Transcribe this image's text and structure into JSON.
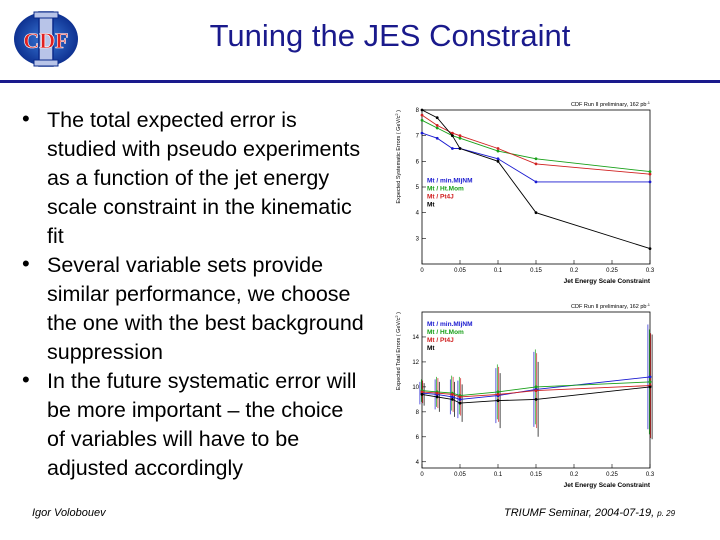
{
  "slide": {
    "title": "Tuning the JES Constraint",
    "bullets": [
      "The total expected error is studied with pseudo experiments as a function of the jet energy scale constraint in the kinematic fit",
      "Several variable sets provide similar performance, we choose the one with the best background suppression",
      "In the future systematic error will be more important – the choice of variables will have to be adjusted accordingly"
    ],
    "footer_author": "Igor Volobouev",
    "footer_event": "TRIUMF Seminar, 2004-07-19,",
    "footer_page": "p. 29",
    "logo_text": "CDF",
    "accent_color": "#1a1a8c"
  },
  "chart_data": [
    {
      "type": "line",
      "title": "CDF Run II preliminary, 162 pb",
      "title_sup": "-1",
      "xlabel": "Jet Energy Scale Constraint",
      "ylabel": "Expected Systematic Errors ( GeV/c",
      "ylabel_sup": "2",
      "ylabel_end": " )",
      "xlim": [
        0,
        0.3
      ],
      "ylim": [
        2,
        8
      ],
      "x_ticks": [
        0,
        0.05,
        0.1,
        0.15,
        0.2,
        0.25,
        0.3
      ],
      "x_tick_labels": [
        "0",
        "0.05",
        "0.1",
        "0.15",
        "0.2",
        "0.25",
        "0.3"
      ],
      "y_ticks": [
        3,
        4,
        5,
        6,
        7,
        8
      ],
      "y_tick_labels": [
        "3",
        "4",
        "5",
        "6",
        "7",
        "8"
      ],
      "legend": {
        "position": "middle-left"
      },
      "x": [
        0,
        0.02,
        0.04,
        0.05,
        0.1,
        0.15,
        0.3
      ],
      "series": [
        {
          "name": "Mt / min.MljNM",
          "color": "#1a1ad0",
          "values": [
            7.1,
            6.9,
            6.5,
            6.5,
            6.1,
            5.2,
            5.2
          ]
        },
        {
          "name": "Mt / Ht.Mom",
          "color": "#19a019",
          "values": [
            7.6,
            7.3,
            7.0,
            6.9,
            6.4,
            6.1,
            5.6
          ]
        },
        {
          "name": "Mt / Pt4J",
          "color": "#d02020",
          "values": [
            7.8,
            7.4,
            7.1,
            7.0,
            6.5,
            5.9,
            5.5
          ]
        },
        {
          "name": "Mt",
          "color": "#000000",
          "values": [
            8.0,
            7.7,
            7.0,
            6.5,
            6.0,
            4.0,
            2.6
          ]
        }
      ]
    },
    {
      "type": "line",
      "title": "CDF Run II preliminary, 162 pb",
      "title_sup": "-1",
      "xlabel": "Jet Energy Scale Constraint",
      "ylabel": "Expected Total Errors ( GeV/c",
      "ylabel_sup": "2",
      "ylabel_end": " )",
      "xlim": [
        0,
        0.3
      ],
      "ylim": [
        3.5,
        16
      ],
      "x_ticks": [
        0,
        0.05,
        0.1,
        0.15,
        0.2,
        0.25,
        0.3
      ],
      "x_tick_labels": [
        "0",
        "0.05",
        "0.1",
        "0.15",
        "0.2",
        "0.25",
        "0.3"
      ],
      "y_ticks": [
        4,
        6,
        8,
        10,
        12,
        14
      ],
      "y_tick_labels": [
        "4",
        "6",
        "8",
        "10",
        "12",
        "14"
      ],
      "legend": {
        "position": "top-left"
      },
      "x": [
        0,
        0.02,
        0.04,
        0.05,
        0.1,
        0.15,
        0.3
      ],
      "error_bars": [
        0.9,
        1.2,
        1.4,
        1.5,
        2.2,
        3.0,
        4.2
      ],
      "series": [
        {
          "name": "Mt / min.MljNM",
          "color": "#1a1ad0",
          "values": [
            9.5,
            9.4,
            9.2,
            9.0,
            9.3,
            9.8,
            10.8
          ]
        },
        {
          "name": "Mt / Ht.Mom",
          "color": "#19a019",
          "values": [
            9.7,
            9.6,
            9.5,
            9.3,
            9.6,
            10.0,
            10.4
          ]
        },
        {
          "name": "Mt / Pt4J",
          "color": "#d02020",
          "values": [
            9.6,
            9.5,
            9.4,
            9.2,
            9.4,
            9.7,
            10.1
          ]
        },
        {
          "name": "Mt",
          "color": "#000000",
          "values": [
            9.4,
            9.2,
            9.0,
            8.7,
            8.9,
            9.0,
            10.0
          ]
        }
      ]
    }
  ]
}
